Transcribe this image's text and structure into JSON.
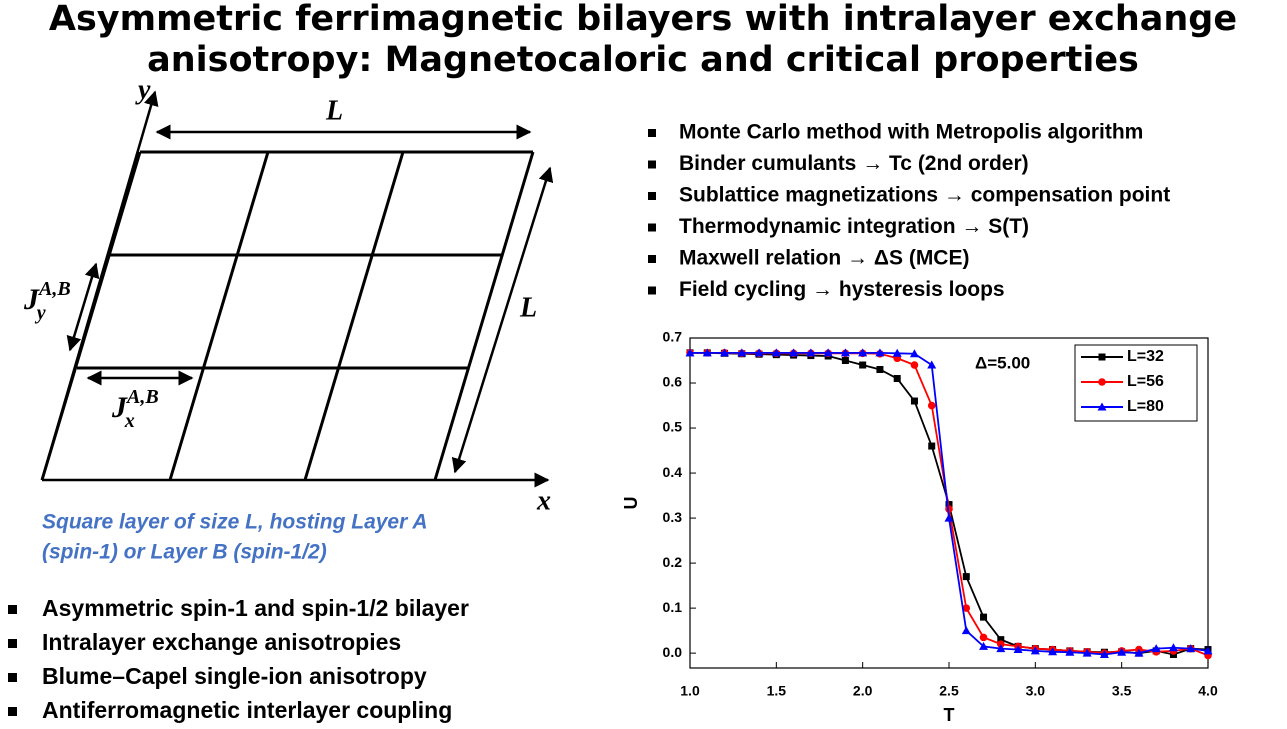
{
  "title": [
    "Asymmetric ferrimagnetic bilayers with intralayer exchange",
    "anisotropy: Magnetocaloric and critical properties"
  ],
  "diagram": {
    "axis_y": "y",
    "axis_x": "x",
    "size_top": "L",
    "size_side": "L",
    "jy": {
      "base": "J",
      "sub": "y",
      "sup": "A,B"
    },
    "jx": {
      "base": "J",
      "sub": "x",
      "sup": "A,B"
    },
    "caption": [
      "Square layer of size L, hosting Layer A",
      "(spin-1) or Layer B (spin-1/2)"
    ]
  },
  "features": [
    "Asymmetric spin-1 and spin-1/2 bilayer",
    "Intralayer exchange anisotropies",
    "Blume–Capel single-ion anisotropy",
    "Antiferromagnetic interlayer coupling"
  ],
  "methods": [
    "Monte Carlo method with Metropolis algorithm",
    "Binder cumulants → Tc (2nd order)",
    "Sublattice magnetizations → compensation point",
    "Thermodynamic integration → S(T)",
    "Maxwell relation → ΔS (MCE)",
    "Field cycling → hysteresis loops"
  ],
  "chart_data": {
    "type": "line",
    "x_label": "T",
    "y_label": "U",
    "annotation": "Δ=5.00",
    "x": [
      1.0,
      1.1,
      1.2,
      1.3,
      1.4,
      1.5,
      1.6,
      1.7,
      1.8,
      1.9,
      2.0,
      2.1,
      2.2,
      2.3,
      2.4,
      2.5,
      2.6,
      2.7,
      2.8,
      2.9,
      3.0,
      3.1,
      3.2,
      3.3,
      3.4,
      3.5,
      3.6,
      3.7,
      3.8,
      3.9,
      4.0
    ],
    "series": [
      {
        "name": "L=32",
        "color": "#000000",
        "marker": "square",
        "values": [
          0.667,
          0.667,
          0.666,
          0.665,
          0.664,
          0.663,
          0.662,
          0.661,
          0.66,
          0.65,
          0.64,
          0.63,
          0.61,
          0.56,
          0.46,
          0.33,
          0.17,
          0.08,
          0.03,
          0.015,
          0.01,
          0.008,
          0.005,
          0.003,
          0.002,
          0.003,
          0.0,
          0.005,
          -0.003,
          0.01,
          0.008
        ]
      },
      {
        "name": "L=56",
        "color": "#ff0000",
        "marker": "circle",
        "values": [
          0.667,
          0.667,
          0.667,
          0.666,
          0.666,
          0.666,
          0.666,
          0.666,
          0.666,
          0.666,
          0.666,
          0.665,
          0.655,
          0.64,
          0.55,
          0.32,
          0.1,
          0.035,
          0.02,
          0.015,
          0.01,
          0.008,
          0.005,
          0.003,
          0.0,
          0.005,
          0.008,
          0.003,
          0.005,
          0.01,
          -0.005
        ]
      },
      {
        "name": "L=80",
        "color": "#0000ff",
        "marker": "triangle",
        "values": [
          0.667,
          0.667,
          0.667,
          0.667,
          0.667,
          0.667,
          0.667,
          0.667,
          0.667,
          0.667,
          0.667,
          0.667,
          0.666,
          0.665,
          0.64,
          0.3,
          0.05,
          0.015,
          0.01,
          0.008,
          0.005,
          0.003,
          0.002,
          0.0,
          -0.003,
          0.002,
          0.0,
          0.01,
          0.012,
          0.01,
          0.005
        ]
      }
    ],
    "xlim": [
      1.0,
      4.0
    ],
    "ylim": [
      -0.033,
      0.7
    ],
    "xticks": [
      {
        "value": 1,
        "label": "1.0"
      },
      1.5,
      {
        "value": 2,
        "label": "2.0"
      },
      2.5,
      {
        "value": 3,
        "label": "3.0"
      },
      3.5,
      {
        "value": 4,
        "label": "4.0"
      }
    ],
    "yticks": [
      {
        "value": 0,
        "label": "0.0"
      },
      0.1,
      0.2,
      0.3,
      0.4,
      0.5,
      0.6,
      0.7
    ],
    "legend": "upper right"
  }
}
